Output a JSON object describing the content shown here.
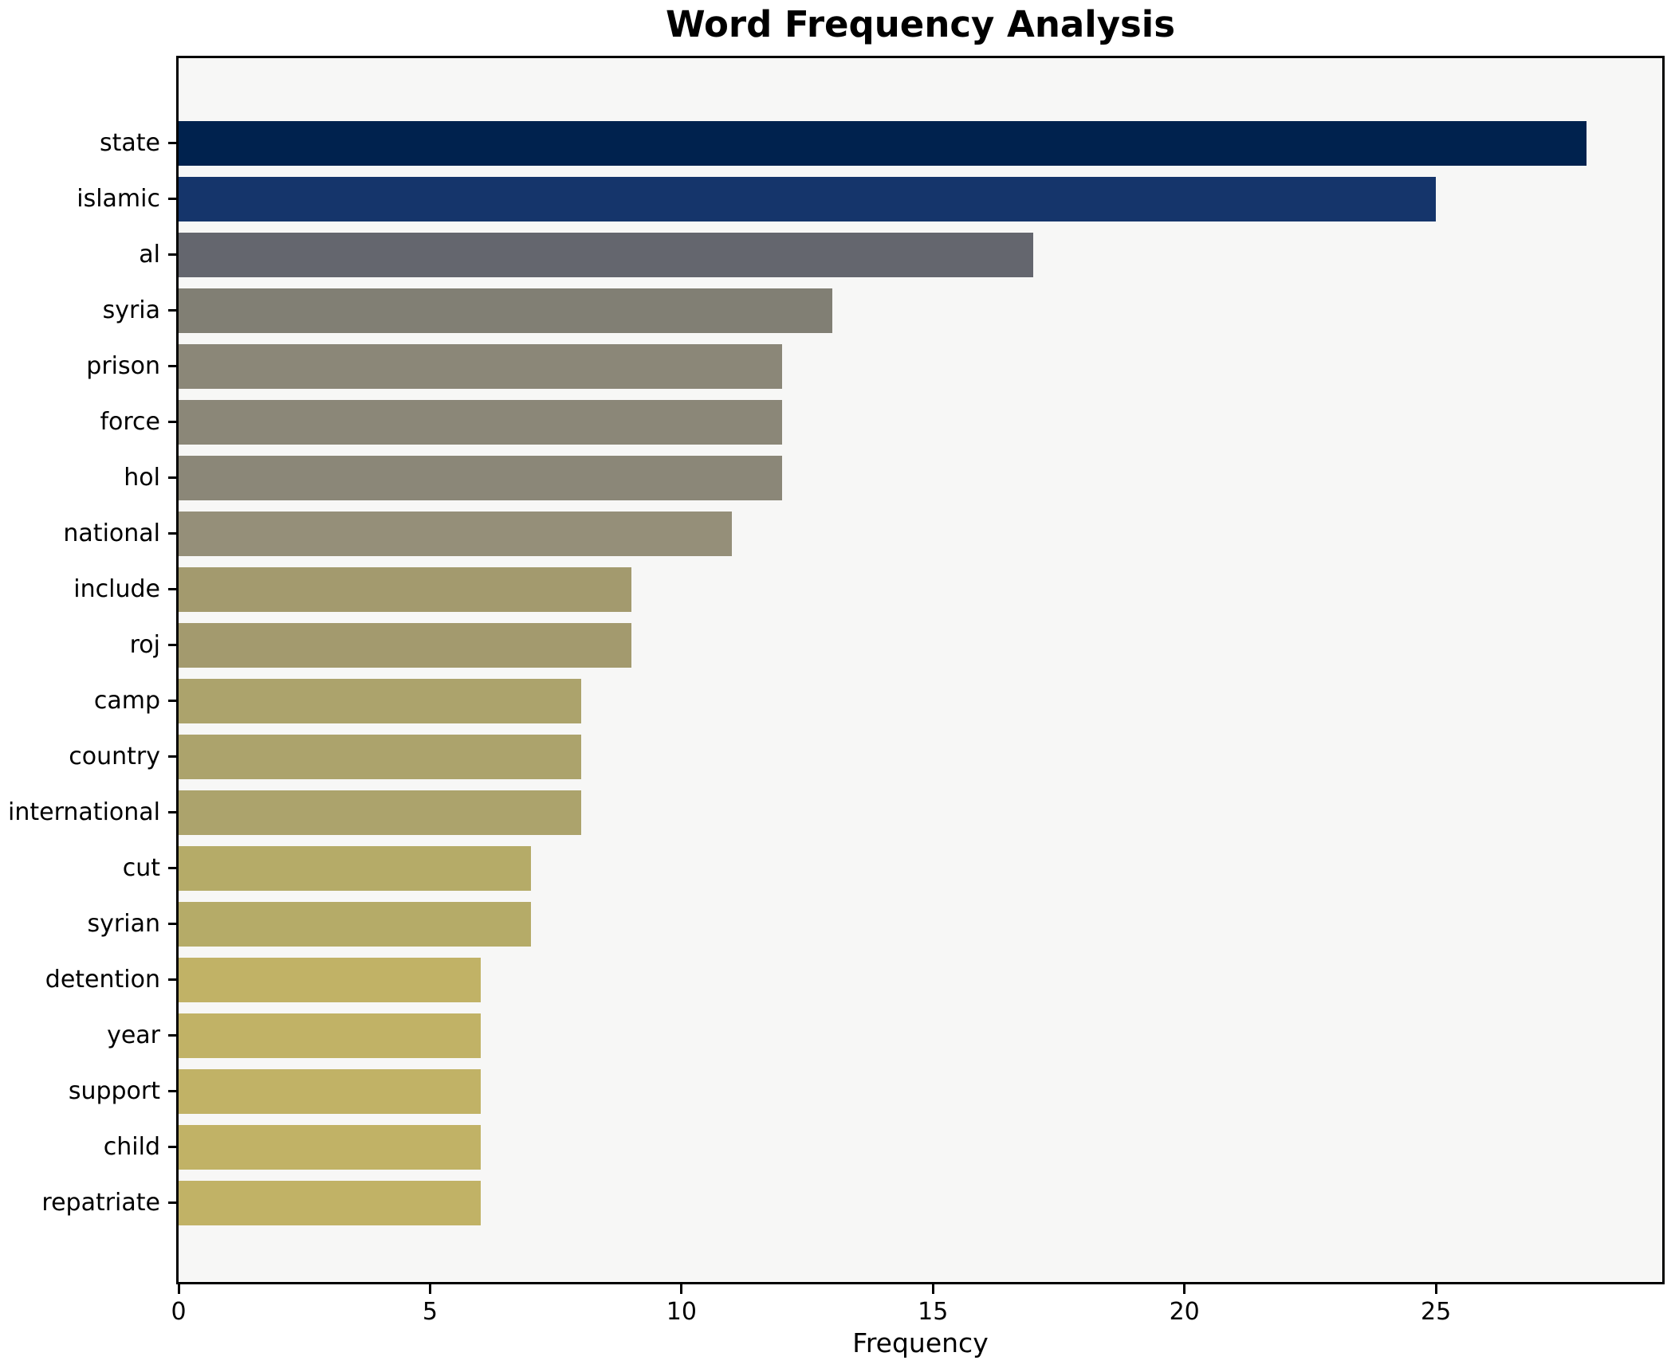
{
  "chart_data": {
    "type": "bar",
    "orientation": "horizontal",
    "title": "Word Frequency Analysis",
    "xlabel": "Frequency",
    "ylabel": "",
    "categories": [
      "state",
      "islamic",
      "al",
      "syria",
      "prison",
      "force",
      "hol",
      "national",
      "include",
      "roj",
      "camp",
      "country",
      "international",
      "cut",
      "syrian",
      "detention",
      "year",
      "support",
      "child",
      "repatriate"
    ],
    "values": [
      28,
      25,
      17,
      13,
      12,
      12,
      12,
      11,
      9,
      9,
      8,
      8,
      8,
      7,
      7,
      6,
      6,
      6,
      6,
      6
    ],
    "bar_colors": [
      "#00224e",
      "#15356b",
      "#64666e",
      "#817f74",
      "#8b8778",
      "#8b8778",
      "#8b8778",
      "#958f79",
      "#a39a6e",
      "#a39a6e",
      "#aca36c",
      "#aca36c",
      "#aca36c",
      "#b5ab68",
      "#b5ab68",
      "#c1b266",
      "#c1b266",
      "#c1b266",
      "#c1b266",
      "#c1b266"
    ],
    "xlim": [
      0,
      29.5
    ],
    "xticks": [
      0,
      5,
      10,
      15,
      20,
      25
    ],
    "grid": false,
    "legend": false,
    "plot_background": "#f7f7f6",
    "axis_color": "#000000"
  }
}
